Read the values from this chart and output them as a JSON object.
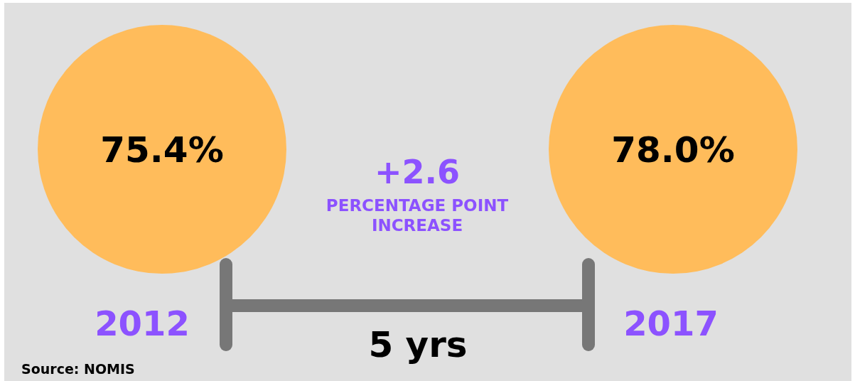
{
  "chart_data": {
    "type": "other",
    "categories": [
      "2012",
      "2017"
    ],
    "values": [
      75.4,
      78.0
    ],
    "value_labels": [
      "75.4%",
      "78.0%"
    ],
    "colors": [
      "#ffbc5b",
      "#ffbc5b"
    ],
    "annotations": [
      "+2.6",
      "PERCENTAGE POINT INCREASE",
      "5 yrs",
      "Source: NOMIS"
    ]
  }
}
